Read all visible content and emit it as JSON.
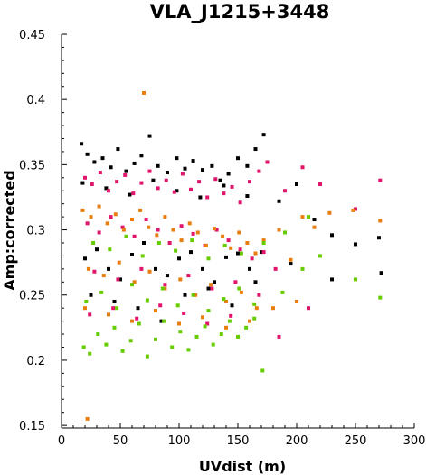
{
  "chart_data": {
    "type": "scatter",
    "title": "VLA_J1215+3448",
    "xlabel": "UVdist (m)",
    "ylabel": "Amp:corrected",
    "xlim": [
      0,
      300
    ],
    "ylim": [
      0.148,
      0.45
    ],
    "x_ticks": [
      0,
      50,
      100,
      150,
      200,
      250,
      300
    ],
    "y_ticks": [
      0.15,
      0.2,
      0.25,
      0.3,
      0.35,
      0.4,
      0.45
    ],
    "x_tick_labels": [
      "0",
      "50",
      "100",
      "150",
      "200",
      "250",
      "300"
    ],
    "y_tick_labels": [
      "0.15",
      "0.2",
      "0.25",
      "0.3",
      "0.35",
      "0.4",
      "0.45"
    ],
    "grid": false,
    "legend": "none",
    "series": [
      {
        "color": "#000000",
        "x": [
          17,
          22,
          28,
          35,
          42,
          48,
          55,
          62,
          68,
          75,
          82,
          90,
          98,
          105,
          112,
          120,
          128,
          135,
          142,
          150,
          158,
          165,
          172,
          185,
          200,
          215,
          230,
          250,
          272,
          20,
          30,
          40,
          50,
          60,
          70,
          80,
          90,
          100,
          110,
          120,
          130,
          140,
          150,
          160,
          170,
          25,
          45,
          65,
          85,
          105,
          125,
          145,
          165,
          195,
          230,
          270,
          18,
          38,
          58,
          78,
          98,
          118,
          138,
          158
        ],
        "y": [
          0.366,
          0.358,
          0.352,
          0.355,
          0.348,
          0.362,
          0.345,
          0.351,
          0.357,
          0.372,
          0.349,
          0.344,
          0.355,
          0.347,
          0.353,
          0.346,
          0.349,
          0.338,
          0.343,
          0.355,
          0.349,
          0.362,
          0.373,
          0.322,
          0.335,
          0.308,
          0.296,
          0.289,
          0.267,
          0.278,
          0.285,
          0.27,
          0.262,
          0.281,
          0.29,
          0.27,
          0.265,
          0.278,
          0.283,
          0.27,
          0.26,
          0.279,
          0.282,
          0.27,
          0.283,
          0.25,
          0.245,
          0.24,
          0.23,
          0.25,
          0.255,
          0.242,
          0.26,
          0.274,
          0.262,
          0.294,
          0.336,
          0.332,
          0.327,
          0.338,
          0.33,
          0.325,
          0.334,
          0.326
        ]
      },
      {
        "color": "#e0156b",
        "x": [
          20,
          26,
          33,
          40,
          47,
          54,
          61,
          68,
          75,
          82,
          89,
          96,
          103,
          110,
          117,
          124,
          131,
          138,
          145,
          152,
          160,
          168,
          175,
          190,
          205,
          220,
          250,
          271,
          22,
          32,
          42,
          52,
          62,
          72,
          82,
          92,
          102,
          112,
          122,
          132,
          142,
          152,
          162,
          172,
          182,
          28,
          48,
          68,
          88,
          108,
          128,
          148,
          168,
          185,
          210,
          24,
          44,
          64,
          84,
          104,
          124,
          144
        ],
        "y": [
          0.34,
          0.335,
          0.344,
          0.33,
          0.337,
          0.342,
          0.328,
          0.336,
          0.345,
          0.332,
          0.338,
          0.329,
          0.343,
          0.331,
          0.337,
          0.325,
          0.339,
          0.328,
          0.333,
          0.321,
          0.337,
          0.345,
          0.352,
          0.33,
          0.348,
          0.335,
          0.316,
          0.338,
          0.305,
          0.298,
          0.31,
          0.302,
          0.295,
          0.308,
          0.3,
          0.29,
          0.303,
          0.297,
          0.288,
          0.3,
          0.292,
          0.285,
          0.278,
          0.283,
          0.27,
          0.268,
          0.262,
          0.27,
          0.258,
          0.265,
          0.255,
          0.26,
          0.25,
          0.218,
          0.24,
          0.235,
          0.24,
          0.232,
          0.242,
          0.236,
          0.228,
          0.234
        ]
      },
      {
        "color": "#e87d10",
        "x": [
          18,
          25,
          32,
          39,
          46,
          53,
          60,
          67,
          74,
          81,
          88,
          95,
          102,
          109,
          116,
          123,
          130,
          137,
          144,
          151,
          158,
          165,
          172,
          185,
          195,
          205,
          215,
          228,
          248,
          271,
          23,
          36,
          49,
          62,
          75,
          88,
          101,
          114,
          127,
          140,
          153,
          166,
          22,
          70,
          20,
          40,
          60,
          80,
          100,
          120,
          140,
          160,
          180,
          200
        ],
        "y": [
          0.315,
          0.31,
          0.318,
          0.305,
          0.312,
          0.3,
          0.308,
          0.315,
          0.302,
          0.296,
          0.31,
          0.3,
          0.292,
          0.305,
          0.298,
          0.288,
          0.301,
          0.295,
          0.286,
          0.298,
          0.29,
          0.282,
          0.292,
          0.3,
          0.277,
          0.31,
          0.302,
          0.313,
          0.315,
          0.307,
          0.27,
          0.265,
          0.275,
          0.26,
          0.268,
          0.255,
          0.262,
          0.25,
          0.258,
          0.245,
          0.252,
          0.24,
          0.155,
          0.405,
          0.24,
          0.235,
          0.23,
          0.238,
          0.228,
          0.233,
          0.225,
          0.23,
          0.24,
          0.245
        ]
      },
      {
        "color": "#66cc00",
        "x": [
          19,
          24,
          31,
          38,
          45,
          52,
          59,
          66,
          73,
          80,
          87,
          94,
          101,
          108,
          115,
          122,
          129,
          136,
          143,
          150,
          157,
          164,
          171,
          188,
          205,
          220,
          250,
          271,
          21,
          34,
          47,
          60,
          73,
          86,
          99,
          112,
          125,
          138,
          151,
          164,
          27,
          41,
          55,
          69,
          83,
          97,
          111,
          125,
          139,
          153,
          172,
          190,
          210
        ],
        "y": [
          0.21,
          0.205,
          0.22,
          0.212,
          0.225,
          0.207,
          0.215,
          0.228,
          0.203,
          0.216,
          0.23,
          0.21,
          0.222,
          0.208,
          0.218,
          0.226,
          0.212,
          0.22,
          0.23,
          0.218,
          0.225,
          0.232,
          0.192,
          0.252,
          0.27,
          0.28,
          0.262,
          0.248,
          0.245,
          0.252,
          0.24,
          0.258,
          0.246,
          0.255,
          0.242,
          0.25,
          0.238,
          0.247,
          0.255,
          0.243,
          0.29,
          0.285,
          0.295,
          0.28,
          0.29,
          0.284,
          0.292,
          0.278,
          0.288,
          0.282,
          0.29,
          0.298,
          0.31
        ]
      }
    ]
  }
}
